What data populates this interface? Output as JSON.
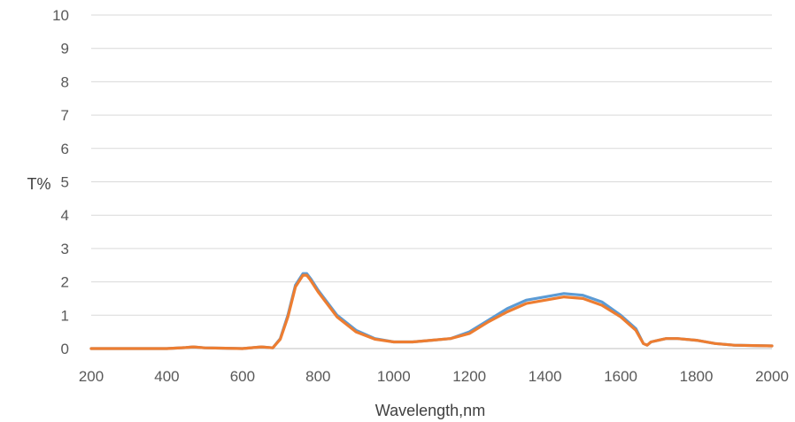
{
  "chart_data": {
    "type": "line",
    "xlabel": "Wavelength,nm",
    "ylabel": "T%",
    "xlim": [
      200,
      2000
    ],
    "ylim": [
      0,
      10
    ],
    "x_ticks": [
      "200",
      "400",
      "600",
      "800",
      "1000",
      "1200",
      "1400",
      "1600",
      "1800",
      "2000"
    ],
    "y_ticks": [
      "0",
      "1",
      "2",
      "3",
      "4",
      "5",
      "6",
      "7",
      "8",
      "9",
      "10"
    ],
    "grid": "horizontal",
    "colors": [
      "#5B9BD5",
      "#ED7D31"
    ],
    "series": [
      {
        "x": [
          200,
          400,
          450,
          470,
          500,
          600,
          650,
          680,
          700,
          720,
          740,
          760,
          770,
          780,
          800,
          850,
          900,
          950,
          1000,
          1050,
          1100,
          1150,
          1200,
          1250,
          1300,
          1350,
          1400,
          1450,
          1500,
          1550,
          1600,
          1640,
          1660,
          1670,
          1680,
          1700,
          1720,
          1750,
          1800,
          1850,
          1900,
          2000
        ],
        "y": [
          0,
          0,
          0.03,
          0.05,
          0.02,
          0,
          0.05,
          0.02,
          0.3,
          1.0,
          1.9,
          2.25,
          2.25,
          2.1,
          1.75,
          1.0,
          0.55,
          0.3,
          0.2,
          0.2,
          0.25,
          0.3,
          0.5,
          0.85,
          1.2,
          1.45,
          1.55,
          1.65,
          1.6,
          1.4,
          1.0,
          0.6,
          0.15,
          0.1,
          0.2,
          0.25,
          0.3,
          0.3,
          0.25,
          0.15,
          0.1,
          0.08
        ]
      },
      {
        "x": [
          200,
          400,
          450,
          470,
          500,
          600,
          650,
          680,
          700,
          720,
          740,
          760,
          770,
          780,
          800,
          850,
          900,
          950,
          1000,
          1050,
          1100,
          1150,
          1200,
          1250,
          1300,
          1350,
          1400,
          1450,
          1500,
          1550,
          1600,
          1640,
          1660,
          1670,
          1680,
          1700,
          1720,
          1750,
          1800,
          1850,
          1900,
          2000
        ],
        "y": [
          0,
          0,
          0.03,
          0.05,
          0.02,
          0,
          0.05,
          0.02,
          0.28,
          0.95,
          1.85,
          2.2,
          2.2,
          2.05,
          1.7,
          0.95,
          0.5,
          0.28,
          0.2,
          0.2,
          0.25,
          0.3,
          0.45,
          0.8,
          1.1,
          1.35,
          1.45,
          1.55,
          1.5,
          1.3,
          0.95,
          0.55,
          0.15,
          0.1,
          0.2,
          0.25,
          0.3,
          0.3,
          0.25,
          0.15,
          0.1,
          0.08
        ]
      }
    ]
  }
}
